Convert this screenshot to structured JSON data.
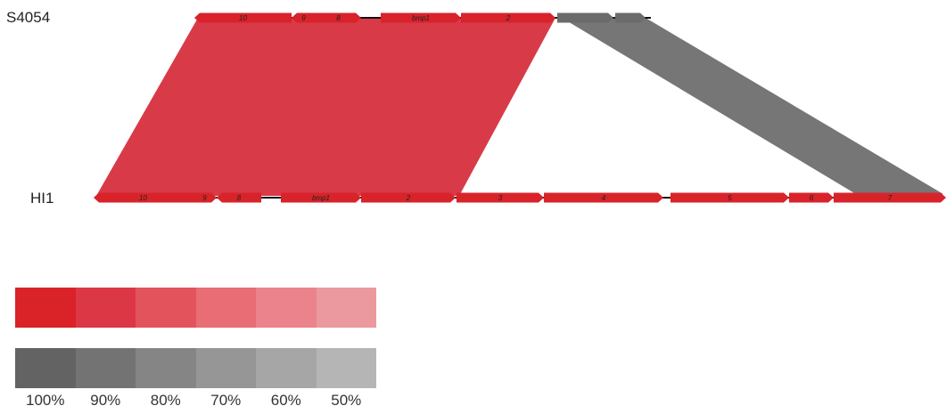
{
  "genomes": [
    {
      "name": "S4054",
      "genes": [
        {
          "label": "10",
          "dir": "left",
          "color": "#d8232a"
        },
        {
          "label": "9",
          "dir": "left",
          "color": "#d8232a"
        },
        {
          "label": "8",
          "dir": "right",
          "color": "#d8232a"
        },
        {
          "label": "bmp1",
          "dir": "right",
          "color": "#d8232a"
        },
        {
          "label": "2",
          "dir": "right",
          "color": "#d8232a"
        },
        {
          "label": "",
          "dir": "right",
          "color": "#6b6b6b"
        },
        {
          "label": "",
          "dir": "right",
          "color": "#6b6b6b"
        }
      ]
    },
    {
      "name": "HI1",
      "genes": [
        {
          "label": "10",
          "dir": "left",
          "color": "#d8232a"
        },
        {
          "label": "9",
          "dir": "right",
          "color": "#d8232a"
        },
        {
          "label": "8",
          "dir": "left",
          "color": "#d8232a"
        },
        {
          "label": "bmp1",
          "dir": "right",
          "color": "#d8232a"
        },
        {
          "label": "2",
          "dir": "right",
          "color": "#d8232a"
        },
        {
          "label": "3",
          "dir": "right",
          "color": "#d8232a"
        },
        {
          "label": "4",
          "dir": "right",
          "color": "#d8232a"
        },
        {
          "label": "5",
          "dir": "right",
          "color": "#d8232a"
        },
        {
          "label": "6",
          "dir": "right",
          "color": "#d8232a"
        },
        {
          "label": "7",
          "dir": "right",
          "color": "#d8232a"
        }
      ]
    }
  ],
  "similarity_links": [
    {
      "from_genes": "10 – 2",
      "color": "#d93a48",
      "identity": "90%"
    },
    {
      "from_genes": "grey pair → 7",
      "color": "#767676",
      "identity": "90%"
    }
  ],
  "legend": {
    "red_colors": [
      "#da2229",
      "#dc3745",
      "#e2535c",
      "#e86d74",
      "#ea838b",
      "#ec989f"
    ],
    "grey_colors": [
      "#636363",
      "#737373",
      "#858585",
      "#969696",
      "#a6a6a6",
      "#b5b5b5"
    ],
    "labels": [
      "100%",
      "90%",
      "80%",
      "70%",
      "60%",
      "50%"
    ]
  }
}
